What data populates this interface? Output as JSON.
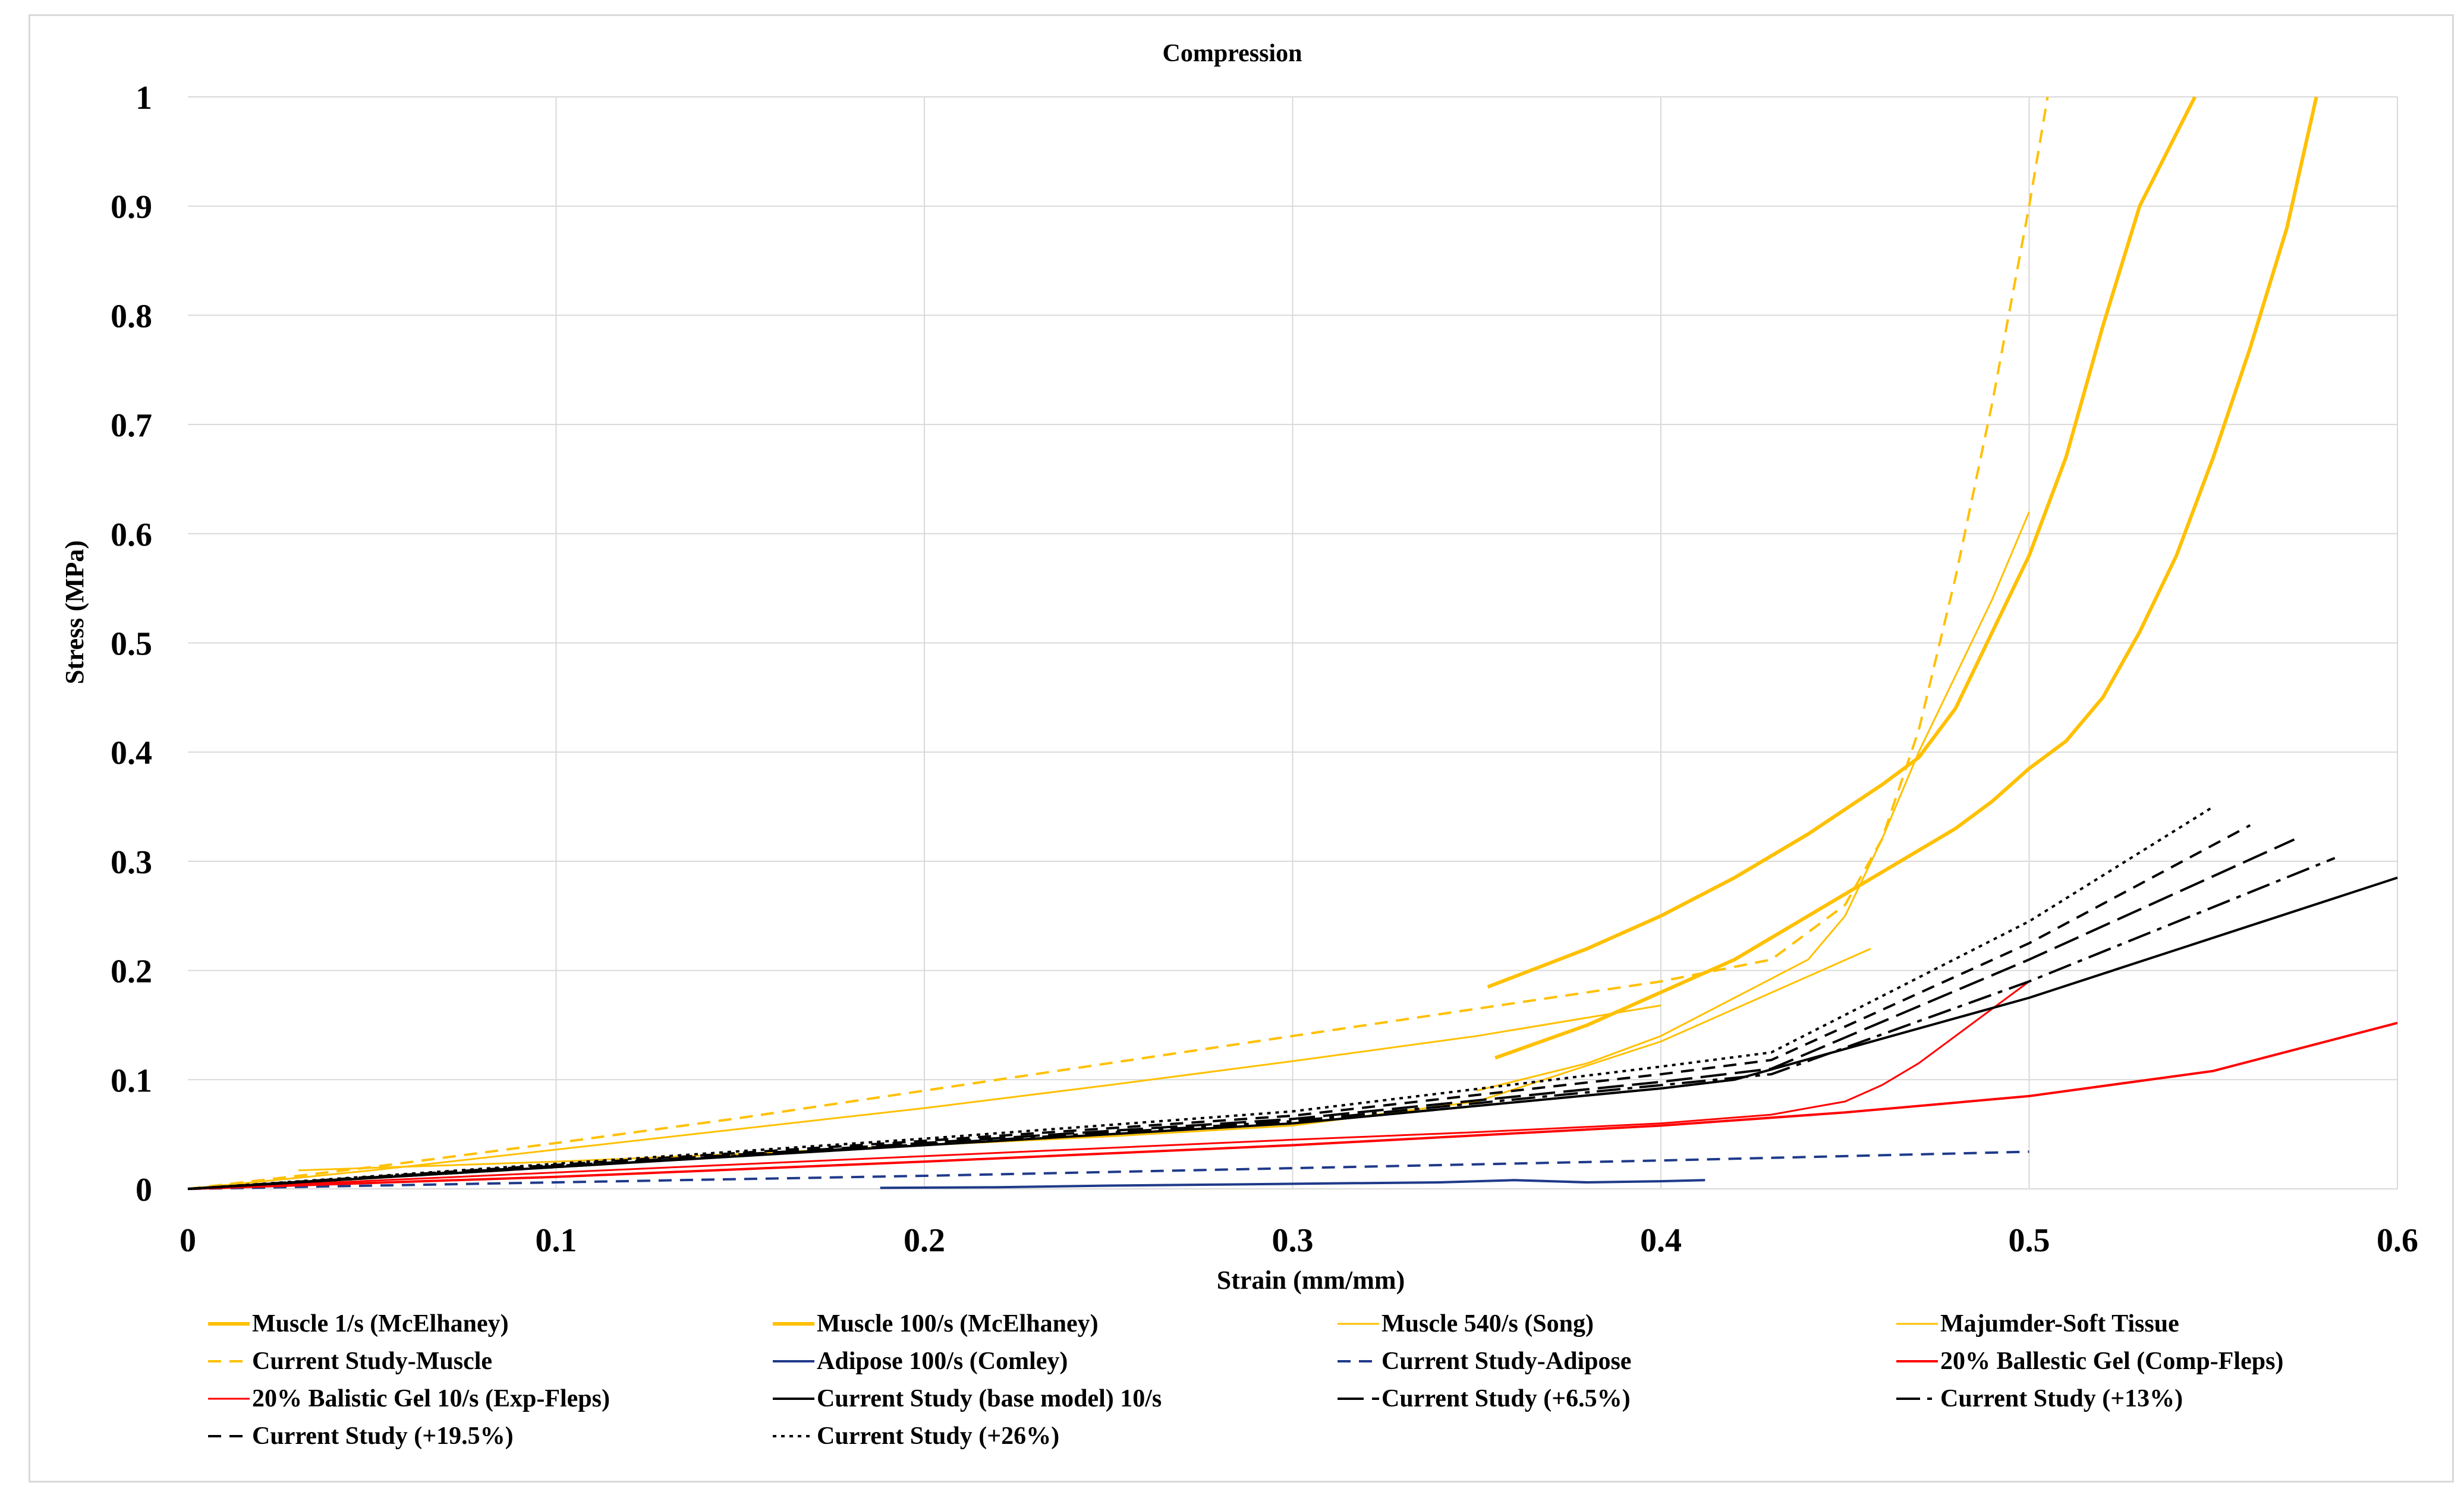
{
  "chart_data": {
    "type": "line",
    "title": "Compression",
    "xlabel": "Strain (mm/mm)",
    "ylabel": "Stress (MPa)",
    "xlim": [
      0,
      0.6
    ],
    "ylim": [
      0,
      1
    ],
    "xticks": [
      0,
      0.1,
      0.2,
      0.3,
      0.4,
      0.5,
      0.6
    ],
    "yticks": [
      0,
      0.1,
      0.2,
      0.3,
      0.4,
      0.5,
      0.6,
      0.7,
      0.8,
      0.9,
      1
    ],
    "xtick_labels": [
      "0",
      "0.1",
      "0.2",
      "0.3",
      "0.4",
      "0.5",
      "0.6"
    ],
    "ytick_labels": [
      "0",
      "0.1",
      "0.2",
      "0.3",
      "0.4",
      "0.5",
      "0.6",
      "0.7",
      "0.8",
      "0.9",
      "1"
    ],
    "grid": true,
    "legend_position": "bottom",
    "series": [
      {
        "name": "Muscle 1/s (McElhaney)",
        "color": "#FFC000",
        "width": 6,
        "dash": "solid",
        "x": [
          0.353,
          0.38,
          0.4,
          0.42,
          0.44,
          0.46,
          0.47,
          0.48,
          0.49,
          0.5,
          0.51,
          0.52,
          0.53,
          0.545
        ],
        "y": [
          0.185,
          0.22,
          0.25,
          0.285,
          0.325,
          0.37,
          0.395,
          0.44,
          0.51,
          0.58,
          0.67,
          0.79,
          0.9,
          1.0
        ]
      },
      {
        "name": "Muscle 100/s (McElhaney)",
        "color": "#FFC000",
        "width": 6,
        "dash": "solid",
        "x": [
          0.355,
          0.38,
          0.4,
          0.42,
          0.44,
          0.46,
          0.48,
          0.49,
          0.5,
          0.51,
          0.52,
          0.53,
          0.54,
          0.55,
          0.56,
          0.57,
          0.578
        ],
        "y": [
          0.12,
          0.15,
          0.18,
          0.21,
          0.25,
          0.29,
          0.33,
          0.355,
          0.385,
          0.41,
          0.45,
          0.51,
          0.58,
          0.67,
          0.77,
          0.88,
          1.0
        ]
      },
      {
        "name": "Muscle 540/s (Song)",
        "color": "#FFC000",
        "width": 3,
        "dash": "solid",
        "x": [
          0.35,
          0.38,
          0.4,
          0.42,
          0.44,
          0.45,
          0.46,
          0.47,
          0.48,
          0.49,
          0.5
        ],
        "y": [
          0.09,
          0.115,
          0.14,
          0.175,
          0.21,
          0.25,
          0.32,
          0.4,
          0.47,
          0.54,
          0.62
        ]
      },
      {
        "name": "Majumder-Soft Tissue",
        "color": "#FFC000",
        "width": 3,
        "dash": "solid",
        "x": [
          0.0,
          0.05,
          0.1,
          0.15,
          0.2,
          0.25,
          0.3,
          0.35,
          0.4
        ],
        "y": [
          0.0,
          0.017,
          0.036,
          0.055,
          0.074,
          0.095,
          0.117,
          0.14,
          0.168
        ],
        "x2": [
          0.03,
          0.1,
          0.15,
          0.2,
          0.25,
          0.3,
          0.35,
          0.4,
          0.457
        ],
        "y2": [
          0.017,
          0.025,
          0.032,
          0.04,
          0.048,
          0.058,
          0.08,
          0.135,
          0.22
        ]
      },
      {
        "name": "Current Study-Muscle",
        "color": "#FFC000",
        "width": 4,
        "dash": "dashed",
        "x": [
          0.0,
          0.05,
          0.1,
          0.15,
          0.2,
          0.25,
          0.3,
          0.35,
          0.4,
          0.43,
          0.45,
          0.46,
          0.47,
          0.48,
          0.49,
          0.5,
          0.505
        ],
        "y": [
          0.0,
          0.02,
          0.042,
          0.065,
          0.09,
          0.115,
          0.14,
          0.165,
          0.19,
          0.21,
          0.26,
          0.32,
          0.42,
          0.56,
          0.72,
          0.9,
          1.0
        ]
      },
      {
        "name": "Adipose  100/s (Comley)",
        "color": "#1F3A8A",
        "width": 4,
        "dash": "solid",
        "x": [
          0.188,
          0.22,
          0.25,
          0.28,
          0.31,
          0.34,
          0.36,
          0.38,
          0.4,
          0.412
        ],
        "y": [
          0.001,
          0.0015,
          0.003,
          0.004,
          0.005,
          0.006,
          0.008,
          0.006,
          0.007,
          0.008
        ]
      },
      {
        "name": "Current Study-Adipose",
        "color": "#1F3A8A",
        "width": 4,
        "dash": "dashed",
        "x": [
          0.0,
          0.1,
          0.2,
          0.3,
          0.4,
          0.5
        ],
        "y": [
          0.0,
          0.006,
          0.012,
          0.019,
          0.026,
          0.034
        ]
      },
      {
        "name": "20% Ballestic Gel  (Comp-Fleps)",
        "color": "#FF0000",
        "width": 4,
        "dash": "solid",
        "x": [
          0.0,
          0.1,
          0.2,
          0.3,
          0.4,
          0.45,
          0.5,
          0.55,
          0.6
        ],
        "y": [
          0.0,
          0.011,
          0.025,
          0.04,
          0.058,
          0.07,
          0.085,
          0.108,
          0.152
        ]
      },
      {
        "name": "20% Balistic Gel  10/s (Exp-Fleps)",
        "color": "#FF0000",
        "width": 3,
        "dash": "solid",
        "x": [
          0.0,
          0.1,
          0.2,
          0.3,
          0.35,
          0.4,
          0.43,
          0.45,
          0.46,
          0.47,
          0.48,
          0.49,
          0.5
        ],
        "y": [
          0.0,
          0.015,
          0.03,
          0.045,
          0.052,
          0.06,
          0.068,
          0.08,
          0.095,
          0.115,
          0.14,
          0.165,
          0.19
        ]
      },
      {
        "name": "Current Study (base model) 10/s",
        "color": "#000000",
        "width": 4,
        "dash": "solid",
        "x": [
          0.0,
          0.1,
          0.2,
          0.3,
          0.4,
          0.42,
          0.5,
          0.6
        ],
        "y": [
          0.0,
          0.02,
          0.04,
          0.06,
          0.092,
          0.1,
          0.175,
          0.285
        ]
      },
      {
        "name": "Current Study (+6.5%)",
        "color": "#000000",
        "width": 4,
        "dash": "longdash",
        "x": [
          0.0,
          0.1,
          0.2,
          0.3,
          0.4,
          0.43,
          0.5,
          0.572
        ],
        "y": [
          0.0,
          0.021,
          0.042,
          0.064,
          0.098,
          0.11,
          0.21,
          0.32
        ]
      },
      {
        "name": "Current Study (+13%)",
        "color": "#000000",
        "width": 4,
        "dash": "dashdot",
        "x": [
          0.0,
          0.1,
          0.2,
          0.3,
          0.4,
          0.43,
          0.5,
          0.583
        ],
        "y": [
          0.0,
          0.02,
          0.041,
          0.062,
          0.095,
          0.105,
          0.19,
          0.303
        ]
      },
      {
        "name": "Current Study (+19.5%)",
        "color": "#000000",
        "width": 4,
        "dash": "dashed",
        "x": [
          0.0,
          0.1,
          0.2,
          0.3,
          0.4,
          0.43,
          0.5,
          0.56
        ],
        "y": [
          0.0,
          0.022,
          0.044,
          0.067,
          0.105,
          0.118,
          0.225,
          0.333
        ]
      },
      {
        "name": "Current Study (+26%)",
        "color": "#000000",
        "width": 4,
        "dash": "dotted",
        "x": [
          0.0,
          0.1,
          0.2,
          0.3,
          0.4,
          0.43,
          0.5,
          0.55
        ],
        "y": [
          0.0,
          0.023,
          0.046,
          0.071,
          0.112,
          0.125,
          0.245,
          0.35
        ]
      }
    ]
  }
}
